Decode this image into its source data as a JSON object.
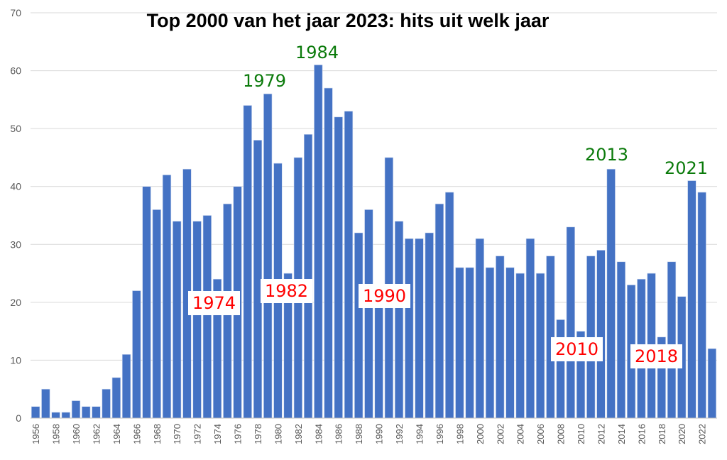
{
  "chart_data": {
    "type": "bar",
    "title": "Top 2000 van het jaar 2023: hits uit welk jaar",
    "xlabel": "",
    "ylabel": "",
    "ylim": [
      0,
      70
    ],
    "yticks": [
      0,
      10,
      20,
      30,
      40,
      50,
      60,
      70
    ],
    "grid": true,
    "bar_color": "#4472C4",
    "categories": [
      "1956",
      "1957",
      "1958",
      "1959",
      "1960",
      "1961",
      "1962",
      "1963",
      "1964",
      "1965",
      "1966",
      "1967",
      "1968",
      "1969",
      "1970",
      "1971",
      "1972",
      "1973",
      "1974",
      "1975",
      "1976",
      "1977",
      "1978",
      "1979",
      "1980",
      "1981",
      "1982",
      "1983",
      "1984",
      "1985",
      "1986",
      "1987",
      "1988",
      "1989",
      "1990",
      "1991",
      "1992",
      "1993",
      "1994",
      "1995",
      "1996",
      "1997",
      "1998",
      "1999",
      "2000",
      "2001",
      "2002",
      "2003",
      "2004",
      "2005",
      "2006",
      "2007",
      "2008",
      "2009",
      "2010",
      "2011",
      "2012",
      "2013",
      "2014",
      "2015",
      "2016",
      "2017",
      "2018",
      "2019",
      "2020",
      "2021",
      "2022",
      "2023"
    ],
    "values": [
      2,
      5,
      1,
      1,
      3,
      2,
      2,
      5,
      7,
      11,
      22,
      40,
      36,
      42,
      34,
      43,
      34,
      35,
      24,
      37,
      40,
      54,
      48,
      56,
      44,
      25,
      45,
      49,
      61,
      57,
      52,
      53,
      32,
      36,
      22,
      45,
      34,
      31,
      31,
      32,
      37,
      39,
      26,
      26,
      31,
      26,
      28,
      26,
      25,
      31,
      25,
      28,
      17,
      33,
      15,
      28,
      29,
      43,
      27,
      23,
      24,
      25,
      14,
      27,
      21,
      41,
      39,
      12
    ],
    "annotations_high": [
      "1979",
      "1984",
      "2013",
      "2021"
    ],
    "annotations_low": [
      "1974",
      "1982",
      "1990",
      "2010",
      "2018"
    ],
    "annotation_colors": {
      "high": "#0a7a0a",
      "low": "#ff0000"
    }
  }
}
